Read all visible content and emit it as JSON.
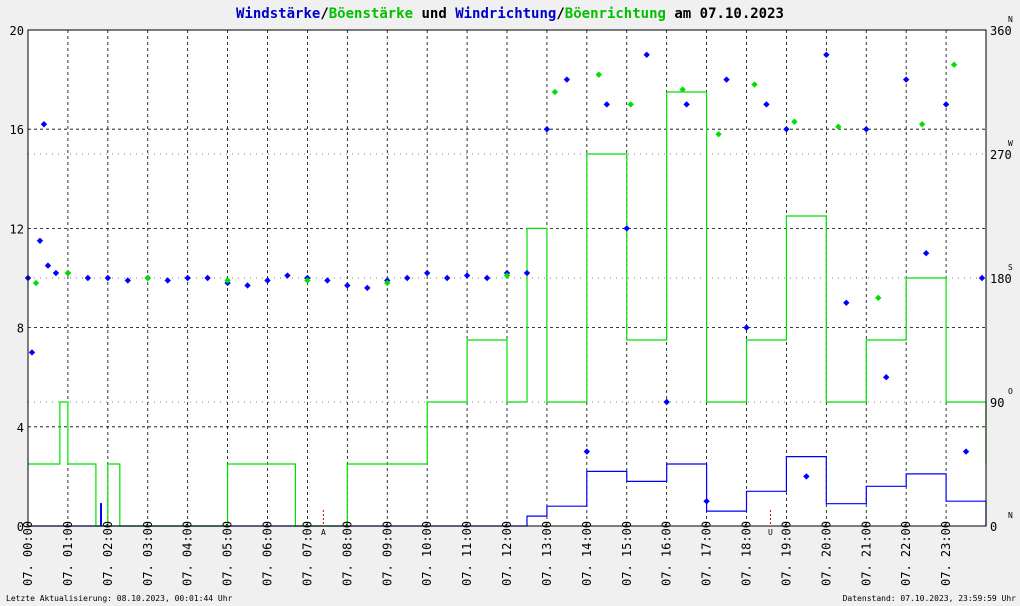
{
  "chart_data": {
    "type": "line",
    "title": {
      "part1": "Windstärke",
      "slash1": "/",
      "part2": "Böenstärke",
      "und": " und ",
      "part3": "Windrichtung",
      "slash2": "/",
      "part4": "Böenrichtung",
      "am": " am ",
      "date": "07.10.2023"
    },
    "colors": {
      "wind": "#0000ff",
      "gust": "#00e000",
      "axis": "#000000",
      "bg": "#ffffff",
      "page": "#f0f0f0",
      "marker": "#cc0000",
      "title_date": "#000000"
    },
    "y_left": {
      "ticks": [
        0,
        4,
        8,
        12,
        16,
        20
      ],
      "ylim": [
        0,
        20
      ]
    },
    "y_right": {
      "ticks": [
        0,
        90,
        180,
        270,
        360
      ],
      "ylim": [
        0,
        360
      ],
      "compass": [
        "N",
        "O",
        "S",
        "W",
        "N"
      ]
    },
    "x_ticks": [
      "07. 00:00",
      "07. 01:00",
      "07. 02:00",
      "07. 03:00",
      "07. 04:00",
      "07. 05:00",
      "07. 06:00",
      "07. 07:00",
      "07. 08:00",
      "07. 09:00",
      "07. 10:00",
      "07. 11:00",
      "07. 12:00",
      "07. 13:00",
      "07. 14:00",
      "07. 15:00",
      "07. 16:00",
      "07. 17:00",
      "07. 18:00",
      "07. 19:00",
      "07. 20:00",
      "07. 21:00",
      "07. 22:00",
      "07. 23:00"
    ],
    "markers": [
      {
        "hour": 7.4,
        "label": "A"
      },
      {
        "hour": 18.6,
        "label": "U"
      }
    ],
    "direction_series": [
      {
        "name": "Windrichtung",
        "color": "#0000ff",
        "points": [
          [
            0.0,
            10
          ],
          [
            0.1,
            7
          ],
          [
            0.3,
            11.5
          ],
          [
            0.4,
            16.2
          ],
          [
            0.5,
            10.5
          ],
          [
            0.7,
            10.2
          ],
          [
            1.0,
            10.2
          ],
          [
            1.5,
            10.0
          ],
          [
            2.0,
            10.0
          ],
          [
            2.5,
            9.9
          ],
          [
            3.0,
            10.0
          ],
          [
            3.5,
            9.9
          ],
          [
            4.0,
            10.0
          ],
          [
            4.5,
            10.0
          ],
          [
            5.0,
            9.8
          ],
          [
            5.5,
            9.7
          ],
          [
            6.0,
            9.9
          ],
          [
            6.5,
            10.1
          ],
          [
            7.0,
            10.0
          ],
          [
            7.5,
            9.9
          ],
          [
            8.0,
            9.7
          ],
          [
            8.5,
            9.6
          ],
          [
            9.0,
            9.9
          ],
          [
            9.5,
            10.0
          ],
          [
            10.0,
            10.2
          ],
          [
            10.5,
            10.0
          ],
          [
            11.0,
            10.1
          ],
          [
            11.5,
            10.0
          ],
          [
            12.0,
            10.2
          ],
          [
            12.5,
            10.2
          ],
          [
            13.0,
            16
          ],
          [
            13.5,
            18
          ],
          [
            14.0,
            3
          ],
          [
            14.5,
            17
          ],
          [
            15.0,
            12
          ],
          [
            15.5,
            19
          ],
          [
            16.0,
            5
          ],
          [
            16.5,
            17
          ],
          [
            17.0,
            1
          ],
          [
            17.5,
            18
          ],
          [
            18.0,
            8
          ],
          [
            18.5,
            17
          ],
          [
            19.0,
            16
          ],
          [
            19.5,
            2
          ],
          [
            20.0,
            19
          ],
          [
            20.5,
            9
          ],
          [
            21.0,
            16
          ],
          [
            21.5,
            6
          ],
          [
            22.0,
            18
          ],
          [
            22.5,
            11
          ],
          [
            23.0,
            17
          ],
          [
            23.5,
            3
          ],
          [
            23.9,
            10
          ]
        ]
      },
      {
        "name": "Boenrichtung",
        "color": "#00e000",
        "points": [
          [
            0.2,
            9.8
          ],
          [
            1.0,
            10.2
          ],
          [
            3.0,
            10.0
          ],
          [
            5.0,
            9.9
          ],
          [
            7.0,
            9.9
          ],
          [
            9.0,
            9.8
          ],
          [
            12.0,
            10.1
          ],
          [
            13.2,
            17.5
          ],
          [
            14.3,
            18.2
          ],
          [
            15.1,
            17.0
          ],
          [
            16.4,
            17.6
          ],
          [
            17.3,
            15.8
          ],
          [
            18.2,
            17.8
          ],
          [
            19.2,
            16.3
          ],
          [
            20.3,
            16.1
          ],
          [
            21.3,
            9.2
          ],
          [
            22.4,
            16.2
          ],
          [
            23.2,
            18.6
          ]
        ]
      }
    ],
    "speed_series": [
      {
        "name": "Windstärke",
        "color": "#0000ff",
        "points": [
          [
            0.0,
            0
          ],
          [
            1.8,
            0
          ],
          [
            1.82,
            0.9
          ],
          [
            1.84,
            0
          ],
          [
            12.0,
            0
          ],
          [
            12.5,
            0.4
          ],
          [
            13.0,
            0.8
          ],
          [
            14.0,
            2.2
          ],
          [
            15.0,
            1.8
          ],
          [
            16.0,
            2.5
          ],
          [
            17.0,
            0.6
          ],
          [
            18.0,
            1.4
          ],
          [
            19.0,
            2.8
          ],
          [
            20.0,
            0.9
          ],
          [
            21.0,
            1.6
          ],
          [
            22.0,
            2.1
          ],
          [
            23.0,
            1.0
          ],
          [
            24.0,
            0
          ]
        ]
      },
      {
        "name": "Böenstärke",
        "color": "#00e000",
        "points": [
          [
            0.0,
            2.5
          ],
          [
            0.8,
            5.0
          ],
          [
            1.0,
            2.5
          ],
          [
            1.7,
            0
          ],
          [
            2.0,
            2.5
          ],
          [
            2.3,
            0
          ],
          [
            5.0,
            2.5
          ],
          [
            6.7,
            0
          ],
          [
            8.0,
            2.5
          ],
          [
            10.0,
            5.0
          ],
          [
            11.0,
            7.5
          ],
          [
            12.0,
            5.0
          ],
          [
            12.5,
            12.0
          ],
          [
            13.0,
            5.0
          ],
          [
            14.0,
            15.0
          ],
          [
            15.0,
            7.5
          ],
          [
            16.0,
            17.5
          ],
          [
            17.0,
            5.0
          ],
          [
            18.0,
            7.5
          ],
          [
            19.0,
            12.5
          ],
          [
            20.0,
            5.0
          ],
          [
            21.0,
            7.5
          ],
          [
            22.0,
            10.0
          ],
          [
            23.0,
            5.0
          ],
          [
            24.0,
            2.5
          ]
        ]
      }
    ]
  },
  "footer": {
    "left": "Letzte Aktualisierung: 08.10.2023, 00:01:44 Uhr",
    "right": "Datenstand: 07.10.2023, 23:59:59 Uhr"
  }
}
